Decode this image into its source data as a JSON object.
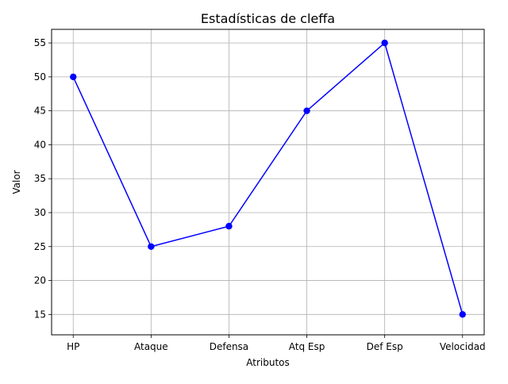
{
  "chart_data": {
    "type": "line",
    "title": "Estadísticas de cleffa",
    "xlabel": "Atributos",
    "ylabel": "Valor",
    "categories": [
      "HP",
      "Ataque",
      "Defensa",
      "Atq Esp",
      "Def Esp",
      "Velocidad"
    ],
    "series": [
      {
        "values": [
          50,
          25,
          28,
          45,
          55,
          15
        ],
        "color": "#0000ff",
        "marker": "circle"
      }
    ],
    "ylim": [
      12.0,
      57.0
    ],
    "yticks": [
      15,
      20,
      25,
      30,
      35,
      40,
      45,
      50,
      55
    ],
    "grid": true,
    "legend": "none"
  }
}
